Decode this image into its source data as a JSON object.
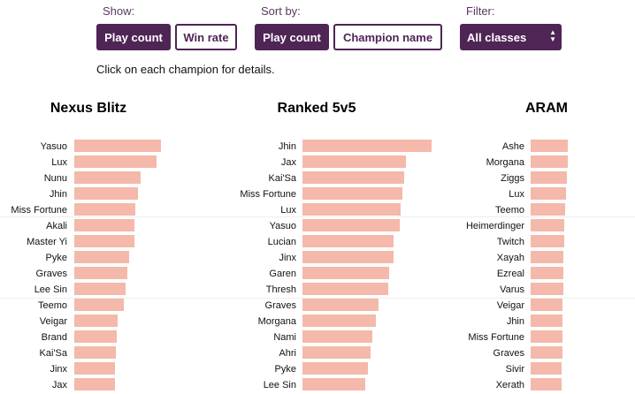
{
  "controls": {
    "show": {
      "label": "Show:",
      "options": [
        "Play count",
        "Win rate"
      ],
      "selected": "Play count"
    },
    "sort": {
      "label": "Sort by:",
      "options": [
        "Play count",
        "Champion name"
      ],
      "selected": "Play count"
    },
    "filter": {
      "label": "Filter:",
      "value": "All classes"
    }
  },
  "hint": "Click on each champion for details.",
  "colors": {
    "accent": "#4e2554",
    "bar": "#f4b9aa"
  },
  "chart_data": [
    {
      "type": "bar",
      "title": "Nexus Blitz",
      "categories": [
        "Yasuo",
        "Lux",
        "Nunu",
        "Jhin",
        "Miss Fortune",
        "Akali",
        "Master Yi",
        "Pyke",
        "Graves",
        "Lee Sin",
        "Teemo",
        "Veigar",
        "Brand",
        "Kai'Sa",
        "Jinx",
        "Jax"
      ],
      "values": [
        98,
        93,
        75,
        72,
        69,
        68,
        68,
        62,
        60,
        58,
        56,
        49,
        48,
        47,
        46,
        46
      ]
    },
    {
      "type": "bar",
      "title": "Ranked 5v5",
      "categories": [
        "Jhin",
        "Jax",
        "Kai'Sa",
        "Miss Fortune",
        "Lux",
        "Yasuo",
        "Lucian",
        "Jinx",
        "Garen",
        "Thresh",
        "Graves",
        "Morgana",
        "Nami",
        "Ahri",
        "Pyke",
        "Lee Sin"
      ],
      "values": [
        146,
        117,
        115,
        113,
        111,
        110,
        103,
        103,
        98,
        97,
        86,
        83,
        79,
        77,
        74,
        71
      ]
    },
    {
      "type": "bar",
      "title": "ARAM",
      "categories": [
        "Ashe",
        "Morgana",
        "Ziggs",
        "Lux",
        "Teemo",
        "Heimerdinger",
        "Twitch",
        "Xayah",
        "Ezreal",
        "Varus",
        "Veigar",
        "Jhin",
        "Miss Fortune",
        "Graves",
        "Sivir",
        "Xerath"
      ],
      "values": [
        42,
        42,
        41,
        40,
        39,
        38,
        38,
        37,
        37,
        37,
        36,
        36,
        36,
        36,
        35,
        35
      ]
    }
  ]
}
